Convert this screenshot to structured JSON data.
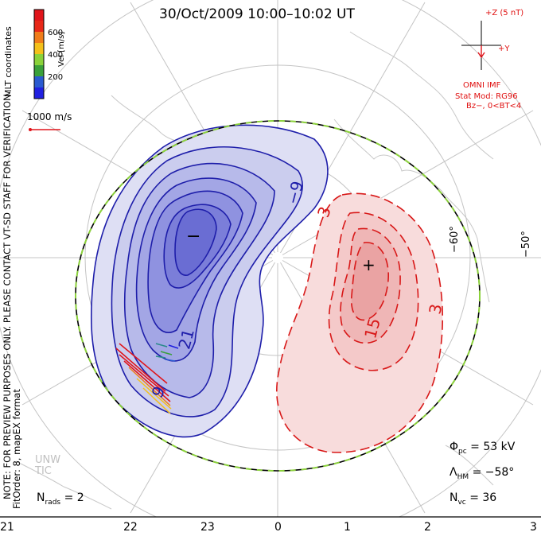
{
  "title": "30/Oct/2009 10:00–10:02 UT",
  "colorbar": {
    "ticks": [
      "600",
      "400",
      "200"
    ],
    "label": "Vel [m/s]",
    "colors": [
      "#e0141a",
      "#f07c1a",
      "#f4c01a",
      "#8ad23a",
      "#3aa03a",
      "#2a8a8a",
      "#2a5ad0",
      "#2020e0"
    ]
  },
  "coord_label": "MLT coordinates",
  "ref_vector": "1000 m/s",
  "notice": "NOTE: FOR PREVIEW PURPOSES ONLY. PLEASE CONTACT VT-SD STAFF FOR VERIFICATION.",
  "fitorder": "FitOrder: 8, mapEX format",
  "imf": {
    "z_label": "+Z (5 nT)",
    "y_label": "+Y",
    "source": "OMNI IMF",
    "model": "Stat Mod: RG96",
    "condition": "Bz−, 0<BT<4"
  },
  "mlt_ticks": [
    "21",
    "22",
    "23",
    "0",
    "1",
    "2",
    "3"
  ],
  "lat_ticks": [
    "−60°",
    "−50°"
  ],
  "contours": {
    "neg_label": "−9",
    "neg_label2": "21",
    "neg_label3": "9",
    "pos_label": "3",
    "pos_label2": "3",
    "pos_label3": "15",
    "min_marker": "−",
    "max_marker": "+"
  },
  "stats": {
    "phi_pc_symbol": "Φ",
    "phi_pc_sub": "pc",
    "phi_pc_value": "= 53 kV",
    "lambda_symbol": "Λ",
    "lambda_sub": "HM",
    "lambda_value": "= −58°",
    "nvc_symbol": "N",
    "nvc_sub": "vc",
    "nvc_value": "= 36",
    "nrads_symbol": "N",
    "nrads_sub": "rads",
    "nrads_value": "= 2"
  },
  "logo": "UNW TIC",
  "colors": {
    "negative": "#1e1eaa",
    "positive": "#d81818",
    "hmb": "#8cd23c"
  }
}
